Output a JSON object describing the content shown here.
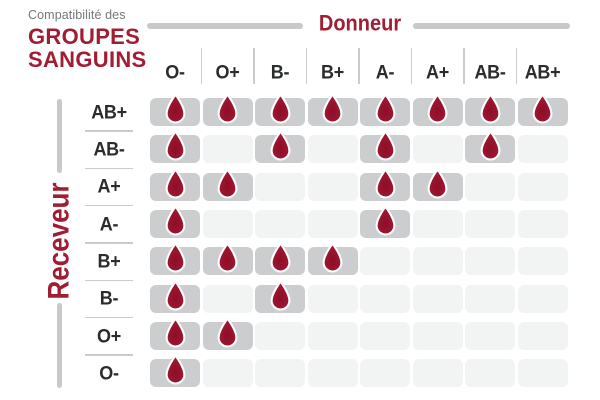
{
  "title": {
    "eyebrow": "Compatibilité des",
    "line1": "GROUPES",
    "line2": "SANGUINS"
  },
  "chart_data": {
    "type": "heatmap",
    "title": "Compatibilité des GROUPES SANGUINS",
    "x_axis_label": "Donneur",
    "y_axis_label": "Receveur",
    "columns": [
      "O-",
      "O+",
      "B-",
      "B+",
      "A-",
      "A+",
      "AB-",
      "AB+"
    ],
    "rows": [
      "AB+",
      "AB-",
      "A+",
      "A-",
      "B+",
      "B-",
      "O+",
      "O-"
    ],
    "values": [
      [
        1,
        1,
        1,
        1,
        1,
        1,
        1,
        1
      ],
      [
        1,
        0,
        1,
        0,
        1,
        0,
        1,
        0
      ],
      [
        1,
        1,
        0,
        0,
        1,
        1,
        0,
        0
      ],
      [
        1,
        0,
        0,
        0,
        1,
        0,
        0,
        0
      ],
      [
        1,
        1,
        1,
        1,
        0,
        0,
        0,
        0
      ],
      [
        1,
        0,
        1,
        0,
        0,
        0,
        0,
        0
      ],
      [
        1,
        1,
        0,
        0,
        0,
        0,
        0,
        0
      ],
      [
        1,
        0,
        0,
        0,
        0,
        0,
        0,
        0
      ]
    ],
    "cell_marker_icon": "blood-drop-icon"
  },
  "colors": {
    "accent_red": "#a11d33",
    "dark_text": "#2b2c2e",
    "muted_text": "#76777a",
    "cell_compatible_bg": "#cbcdce",
    "cell_incompatible_bg": "#f2f3f3",
    "rule_gray": "#c7c9cb",
    "drop_center": "#8c0f26",
    "drop_edge": "#b02038"
  }
}
